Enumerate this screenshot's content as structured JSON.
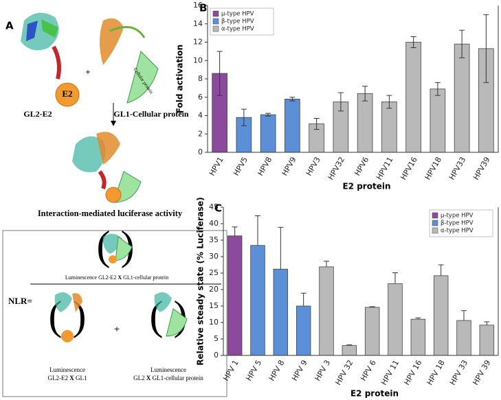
{
  "panel_a": {
    "label": "A",
    "e2": "E2",
    "left_caption": "GL2-E2",
    "plus": "+",
    "right_caption": "GL1-Cellular protein",
    "cellular_protein": "Cellular protein",
    "interaction_caption": "Interaction-mediated luciferase activity",
    "nlr": "NLR=",
    "numerator": [
      "Luminescence GL2-E2 ",
      "X",
      " GL1-cellular protein"
    ],
    "denominator_plus": "+",
    "denominator_left": {
      "line1": "Luminescence",
      "line2": [
        "GL2-E2 ",
        "X",
        " GL1"
      ]
    },
    "denominator_right": {
      "line1": "Luminescence",
      "line2": [
        "GL2 ",
        "X",
        " GL1-cellular protein"
      ]
    }
  },
  "chart_data": [
    {
      "type": "bar",
      "panel_label": "B",
      "x_label": "E2 protein",
      "y_label": "Fold activation",
      "error_bars": "both",
      "legend": "upper-left",
      "categories": [
        "HPV1",
        "HPV5",
        "HPV8",
        "HPV9",
        "HPV3",
        "HPV32",
        "HPV6",
        "HPV11",
        "HPV16",
        "HPV18",
        "HPV33",
        "HPV39"
      ],
      "series": [
        {
          "name": "μ-type HPV",
          "color": "#8b4a9c",
          "values": [
            8.6,
            null,
            null,
            null,
            null,
            null,
            null,
            null,
            null,
            null,
            null,
            null
          ],
          "errors": [
            2.4,
            null,
            null,
            null,
            null,
            null,
            null,
            null,
            null,
            null,
            null,
            null
          ]
        },
        {
          "name": "β-type HPV",
          "color": "#5b8fd6",
          "values": [
            null,
            3.8,
            4.1,
            5.8,
            null,
            null,
            null,
            null,
            null,
            null,
            null,
            null
          ],
          "errors": [
            null,
            0.9,
            0.15,
            0.2,
            null,
            null,
            null,
            null,
            null,
            null,
            null,
            null
          ]
        },
        {
          "name": "α-type HPV",
          "color": "#b9b9b9",
          "values": [
            null,
            null,
            null,
            null,
            3.1,
            5.5,
            6.4,
            5.5,
            12.0,
            6.9,
            11.8,
            11.3
          ],
          "errors": [
            null,
            null,
            null,
            null,
            0.6,
            1.0,
            0.8,
            0.7,
            0.6,
            0.7,
            1.5,
            3.7
          ]
        }
      ],
      "ylim": [
        0,
        16
      ],
      "yticks": [
        0,
        2,
        4,
        6,
        8,
        10,
        12,
        14,
        16
      ]
    },
    {
      "type": "bar",
      "panel_label": "C",
      "x_label": "E2 protein",
      "y_label": "Relative steady state (% Luciferase)",
      "error_bars": "upper",
      "legend": "upper-right",
      "categories": [
        "HPV 1",
        "HPV 5",
        "HPV 8",
        "HPV 9",
        "HPV 3",
        "HPV 32",
        "HPV 6",
        "HPV 11",
        "HPV 16",
        "HPV 18",
        "HPV 33",
        "HPV 39"
      ],
      "series": [
        {
          "name": "μ-type HPV",
          "color": "#8b4a9c",
          "values": [
            36.3,
            null,
            null,
            null,
            null,
            null,
            null,
            null,
            null,
            null,
            null,
            null
          ],
          "errors": [
            2.7,
            null,
            null,
            null,
            null,
            null,
            null,
            null,
            null,
            null,
            null,
            null
          ]
        },
        {
          "name": "β-type HPV",
          "color": "#5b8fd6",
          "values": [
            null,
            33.4,
            26.2,
            15.0,
            null,
            null,
            null,
            null,
            null,
            null,
            null,
            null
          ],
          "errors": [
            null,
            9.0,
            12.7,
            3.9,
            null,
            null,
            null,
            null,
            null,
            null,
            null,
            null
          ]
        },
        {
          "name": "α-type HPV",
          "color": "#b9b9b9",
          "values": [
            null,
            null,
            null,
            null,
            26.9,
            3.0,
            14.6,
            21.8,
            11.0,
            24.2,
            10.6,
            9.2
          ],
          "errors": [
            null,
            null,
            null,
            null,
            1.7,
            0.2,
            0.2,
            3.3,
            0.4,
            3.3,
            3.0,
            1.0
          ]
        }
      ],
      "ylim": [
        0,
        45
      ],
      "yticks": [
        0,
        5,
        10,
        15,
        20,
        25,
        30,
        35,
        40,
        45
      ]
    }
  ]
}
